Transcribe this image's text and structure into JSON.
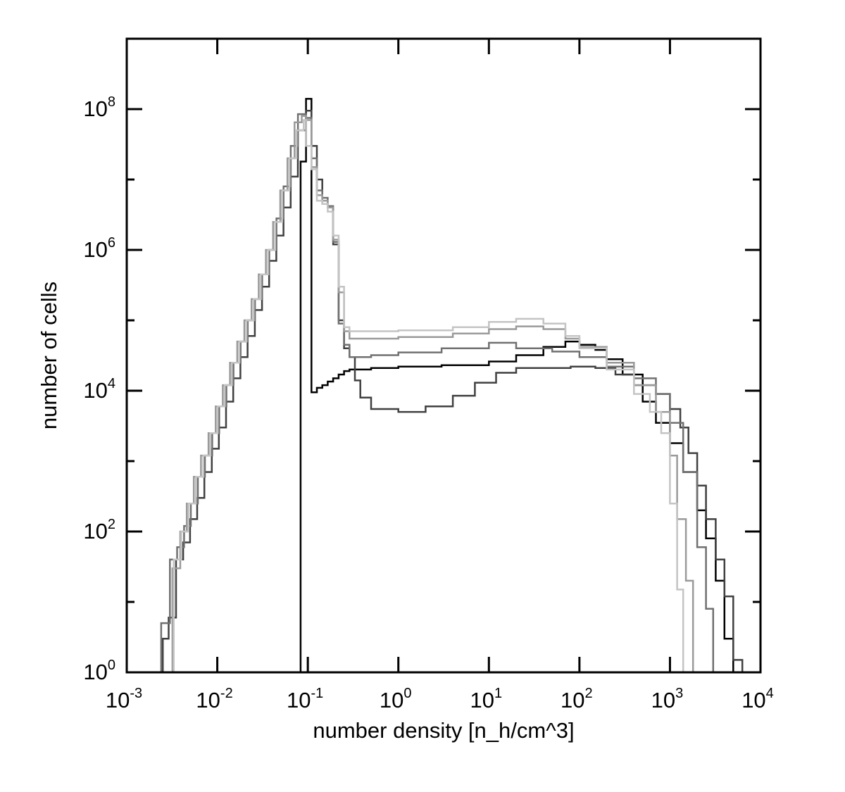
{
  "chart_data": {
    "type": "line",
    "step": true,
    "xscale": "log",
    "yscale": "log",
    "xlabel": "number density [n_h/cm^3]",
    "ylabel": "number of cells",
    "xlim": [
      0.001,
      10000
    ],
    "ylim": [
      1,
      1000000000
    ],
    "grid": false,
    "x_ticks": [
      {
        "base": "10",
        "exp": "-3",
        "value": 0.001
      },
      {
        "base": "10",
        "exp": "-2",
        "value": 0.01
      },
      {
        "base": "10",
        "exp": "-1",
        "value": 0.1
      },
      {
        "base": "10",
        "exp": "0",
        "value": 1
      },
      {
        "base": "10",
        "exp": "1",
        "value": 10
      },
      {
        "base": "10",
        "exp": "2",
        "value": 100
      },
      {
        "base": "10",
        "exp": "3",
        "value": 1000
      },
      {
        "base": "10",
        "exp": "4",
        "value": 10000
      }
    ],
    "y_ticks": [
      {
        "base": "10",
        "exp": "0",
        "value": 1
      },
      {
        "base": "10",
        "exp": "2",
        "value": 100
      },
      {
        "base": "10",
        "exp": "4",
        "value": 10000
      },
      {
        "base": "10",
        "exp": "6",
        "value": 1000000
      },
      {
        "base": "10",
        "exp": "8",
        "value": 100000000
      }
    ],
    "series": [
      {
        "color": "#000000",
        "points": [
          [
            0.0832,
            1
          ],
          [
            0.0832,
            18000000
          ],
          [
            0.0955,
            140000000
          ],
          [
            0.1096,
            9500
          ],
          [
            0.1259,
            11000
          ],
          [
            0.1445,
            12000
          ],
          [
            0.166,
            13500
          ],
          [
            0.1905,
            15000
          ],
          [
            0.2188,
            17000
          ],
          [
            0.2512,
            19000
          ],
          [
            0.2884,
            20000
          ],
          [
            0.5,
            21000
          ],
          [
            1,
            22000
          ],
          [
            3,
            23000
          ],
          [
            10,
            26000
          ],
          [
            20,
            32000
          ],
          [
            40,
            42000
          ],
          [
            70,
            50000
          ],
          [
            100,
            45000
          ],
          [
            150,
            38000
          ],
          [
            200,
            28000
          ],
          [
            300,
            17000
          ],
          [
            500,
            7000
          ],
          [
            700,
            3500
          ],
          [
            1000,
            1800
          ],
          [
            1400,
            700
          ],
          [
            2000,
            200
          ],
          [
            2500,
            80
          ],
          [
            3200,
            20
          ],
          [
            4000,
            3
          ],
          [
            5000,
            0.5
          ]
        ]
      },
      {
        "color": "#404040",
        "points": [
          [
            0.0021,
            0.5
          ],
          [
            0.0025,
            3
          ],
          [
            0.0029,
            6
          ],
          [
            0.0035,
            40
          ],
          [
            0.0042,
            70
          ],
          [
            0.005,
            150
          ],
          [
            0.006,
            300
          ],
          [
            0.0072,
            700
          ],
          [
            0.0087,
            1500
          ],
          [
            0.0104,
            3000
          ],
          [
            0.0125,
            7000
          ],
          [
            0.015,
            15000
          ],
          [
            0.018,
            30000
          ],
          [
            0.0216,
            60000
          ],
          [
            0.026,
            140000
          ],
          [
            0.0312,
            300000
          ],
          [
            0.0374,
            700000
          ],
          [
            0.0449,
            1600000
          ],
          [
            0.0539,
            4000000
          ],
          [
            0.0647,
            11000000
          ],
          [
            0.0776,
            50000000
          ],
          [
            0.0955,
            95000000
          ],
          [
            0.1096,
            30000000
          ],
          [
            0.1259,
            10000000
          ],
          [
            0.1445,
            4500000
          ],
          [
            0.166,
            4000000
          ],
          [
            0.1905,
            1200000
          ],
          [
            0.2188,
            100000
          ],
          [
            0.2512,
            40000
          ],
          [
            0.2884,
            30000
          ],
          [
            0.3311,
            14000
          ],
          [
            0.3802,
            8000
          ],
          [
            0.5,
            5500
          ],
          [
            1,
            5000
          ],
          [
            2,
            6000
          ],
          [
            4,
            8500
          ],
          [
            7,
            13000
          ],
          [
            12,
            18000
          ],
          [
            20,
            21000
          ],
          [
            40,
            21000
          ],
          [
            80,
            22000
          ],
          [
            150,
            21000
          ],
          [
            250,
            17000
          ],
          [
            400,
            12000
          ],
          [
            700,
            9000
          ],
          [
            1000,
            5500
          ],
          [
            1300,
            3000
          ],
          [
            1600,
            1300
          ],
          [
            2000,
            450
          ],
          [
            2500,
            150
          ],
          [
            3200,
            40
          ],
          [
            4000,
            12
          ],
          [
            5000,
            1.5
          ],
          [
            6300,
            0.5
          ]
        ]
      },
      {
        "color": "#707070",
        "points": [
          [
            0.002,
            1
          ],
          [
            0.0024,
            5
          ],
          [
            0.003,
            40
          ],
          [
            0.0036,
            60
          ],
          [
            0.0043,
            120
          ],
          [
            0.0051,
            250
          ],
          [
            0.0061,
            600
          ],
          [
            0.0073,
            1200
          ],
          [
            0.0088,
            2500
          ],
          [
            0.0105,
            6000
          ],
          [
            0.0126,
            12000
          ],
          [
            0.0151,
            25000
          ],
          [
            0.0181,
            50000
          ],
          [
            0.0217,
            100000
          ],
          [
            0.0261,
            200000
          ],
          [
            0.0313,
            450000
          ],
          [
            0.0375,
            1000000
          ],
          [
            0.045,
            2800000
          ],
          [
            0.054,
            8000000
          ],
          [
            0.0648,
            30000000
          ],
          [
            0.0777,
            85000000
          ],
          [
            0.0955,
            75000000
          ],
          [
            0.1096,
            20000000
          ],
          [
            0.1259,
            7000000
          ],
          [
            0.1445,
            5500000
          ],
          [
            0.166,
            4200000
          ],
          [
            0.1905,
            1300000
          ],
          [
            0.2188,
            90000
          ],
          [
            0.2512,
            45000
          ],
          [
            0.2884,
            30000
          ],
          [
            0.5,
            32000
          ],
          [
            1,
            35000
          ],
          [
            3,
            40000
          ],
          [
            10,
            48000
          ],
          [
            20,
            40000
          ],
          [
            50,
            36000
          ],
          [
            100,
            30000
          ],
          [
            200,
            22000
          ],
          [
            400,
            15000
          ],
          [
            700,
            9000
          ],
          [
            1000,
            3500
          ],
          [
            1400,
            700
          ],
          [
            2000,
            60
          ],
          [
            2500,
            8
          ],
          [
            3000,
            0.5
          ]
        ]
      },
      {
        "color": "#9a9a9a",
        "points": [
          [
            0.0027,
            1
          ],
          [
            0.0032,
            30
          ],
          [
            0.0039,
            100
          ],
          [
            0.0046,
            250
          ],
          [
            0.0055,
            600
          ],
          [
            0.0066,
            1200
          ],
          [
            0.008,
            2500
          ],
          [
            0.0096,
            6000
          ],
          [
            0.0115,
            12000
          ],
          [
            0.0138,
            25000
          ],
          [
            0.0166,
            50000
          ],
          [
            0.0199,
            100000
          ],
          [
            0.0239,
            200000
          ],
          [
            0.0287,
            450000
          ],
          [
            0.0344,
            1000000
          ],
          [
            0.0413,
            2500000
          ],
          [
            0.0496,
            7000000
          ],
          [
            0.0595,
            20000000
          ],
          [
            0.0714,
            65000000
          ],
          [
            0.0857,
            80000000
          ],
          [
            0.0955,
            70000000
          ],
          [
            0.1096,
            15000000
          ],
          [
            0.1259,
            6000000
          ],
          [
            0.1445,
            5000000
          ],
          [
            0.166,
            4000000
          ],
          [
            0.1905,
            1400000
          ],
          [
            0.2188,
            250000
          ],
          [
            0.2512,
            70000
          ],
          [
            0.2884,
            55000
          ],
          [
            1,
            58000
          ],
          [
            4,
            65000
          ],
          [
            10,
            75000
          ],
          [
            20,
            82000
          ],
          [
            40,
            75000
          ],
          [
            70,
            55000
          ],
          [
            100,
            42000
          ],
          [
            200,
            25000
          ],
          [
            400,
            12000
          ],
          [
            700,
            5000
          ],
          [
            1000,
            1200
          ],
          [
            1200,
            150
          ],
          [
            1500,
            20
          ],
          [
            1800,
            1
          ],
          [
            2100,
            0.5
          ]
        ]
      },
      {
        "color": "#c4c4c4",
        "points": [
          [
            0.0028,
            1
          ],
          [
            0.0033,
            40
          ],
          [
            0.004,
            100
          ],
          [
            0.0048,
            250
          ],
          [
            0.0058,
            600
          ],
          [
            0.007,
            1200
          ],
          [
            0.0084,
            2500
          ],
          [
            0.0101,
            6000
          ],
          [
            0.0121,
            12000
          ],
          [
            0.0145,
            25000
          ],
          [
            0.0175,
            50000
          ],
          [
            0.021,
            100000
          ],
          [
            0.0252,
            200000
          ],
          [
            0.0302,
            450000
          ],
          [
            0.0363,
            1000000
          ],
          [
            0.0435,
            2500000
          ],
          [
            0.0522,
            7000000
          ],
          [
            0.0627,
            20000000
          ],
          [
            0.0752,
            50000000
          ],
          [
            0.09,
            70000000
          ],
          [
            0.0955,
            30000000
          ],
          [
            0.1096,
            14000000
          ],
          [
            0.1259,
            5000000
          ],
          [
            0.1445,
            4500000
          ],
          [
            0.166,
            3500000
          ],
          [
            0.1905,
            1600000
          ],
          [
            0.2188,
            300000
          ],
          [
            0.2512,
            80000
          ],
          [
            0.2884,
            70000
          ],
          [
            1,
            72000
          ],
          [
            4,
            80000
          ],
          [
            10,
            95000
          ],
          [
            20,
            105000
          ],
          [
            40,
            90000
          ],
          [
            70,
            60000
          ],
          [
            100,
            40000
          ],
          [
            200,
            20000
          ],
          [
            400,
            9000
          ],
          [
            600,
            5000
          ],
          [
            800,
            2500
          ],
          [
            1000,
            250
          ],
          [
            1200,
            15
          ],
          [
            1400,
            1
          ],
          [
            1600,
            0.5
          ]
        ]
      }
    ]
  }
}
